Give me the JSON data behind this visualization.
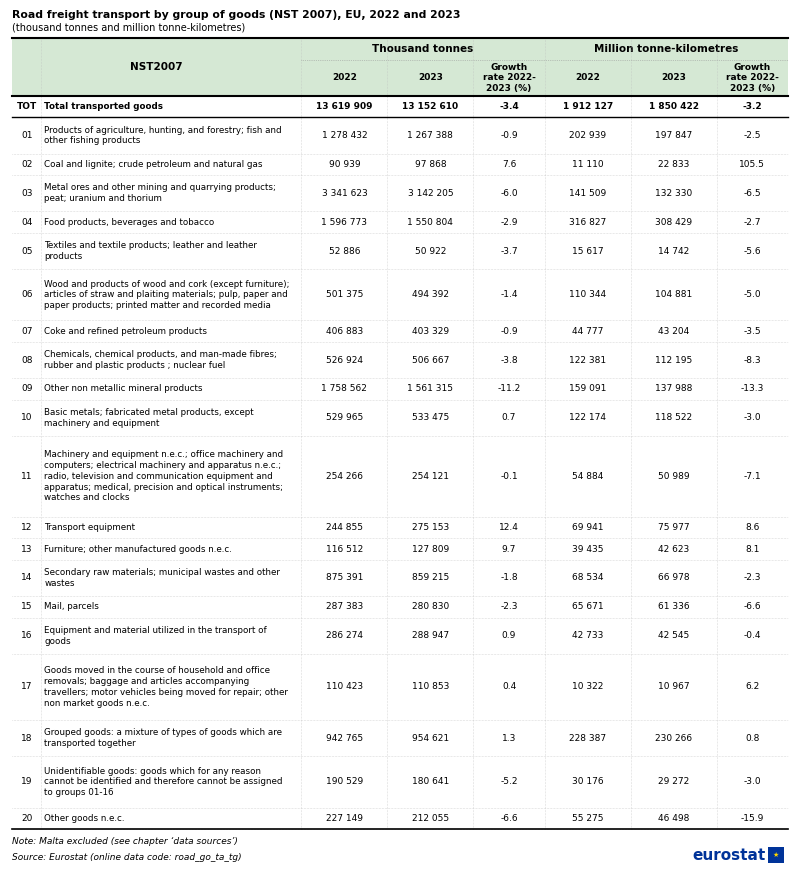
{
  "title": "Road freight transport by group of goods (NST 2007), EU, 2022 and 2023",
  "subtitle": "(thousand tonnes and million tonne-kilometres)",
  "col_header_1": "Thousand tonnes",
  "col_header_2": "Million tonne-kilometres",
  "nst_col": "NST2007",
  "note": "Note: Malta excluded (see chapter ‘data sources’)",
  "source": "Source: Eurostat (online data code: road_go_ta_tg)",
  "header_bg": "#d5e8d4",
  "rows": [
    {
      "code": "TOT",
      "label": "Total transported goods",
      "bold": true,
      "tt_2022": "13 619 909",
      "tt_2023": "13 152 610",
      "tt_growth": "-3.4",
      "mt_2022": "1 912 127",
      "mt_2023": "1 850 422",
      "mt_growth": "-3.2"
    },
    {
      "code": "01",
      "label": "Products of agriculture, hunting, and forestry; fish and\nother fishing products",
      "bold": false,
      "tt_2022": "1 278 432",
      "tt_2023": "1 267 388",
      "tt_growth": "-0.9",
      "mt_2022": "202 939",
      "mt_2023": "197 847",
      "mt_growth": "-2.5"
    },
    {
      "code": "02",
      "label": "Coal and lignite; crude petroleum and natural gas",
      "bold": false,
      "tt_2022": "90 939",
      "tt_2023": "97 868",
      "tt_growth": "7.6",
      "mt_2022": "11 110",
      "mt_2023": "22 833",
      "mt_growth": "105.5"
    },
    {
      "code": "03",
      "label": "Metal ores and other mining and quarrying products;\npeat; uranium and thorium",
      "bold": false,
      "tt_2022": "3 341 623",
      "tt_2023": "3 142 205",
      "tt_growth": "-6.0",
      "mt_2022": "141 509",
      "mt_2023": "132 330",
      "mt_growth": "-6.5"
    },
    {
      "code": "04",
      "label": "Food products, beverages and tobacco",
      "bold": false,
      "tt_2022": "1 596 773",
      "tt_2023": "1 550 804",
      "tt_growth": "-2.9",
      "mt_2022": "316 827",
      "mt_2023": "308 429",
      "mt_growth": "-2.7"
    },
    {
      "code": "05",
      "label": "Textiles and textile products; leather and leather\nproducts",
      "bold": false,
      "tt_2022": "52 886",
      "tt_2023": "50 922",
      "tt_growth": "-3.7",
      "mt_2022": "15 617",
      "mt_2023": "14 742",
      "mt_growth": "-5.6"
    },
    {
      "code": "06",
      "label": "Wood and products of wood and cork (except furniture);\narticles of straw and plaiting materials; pulp, paper and\npaper products; printed matter and recorded media",
      "bold": false,
      "tt_2022": "501 375",
      "tt_2023": "494 392",
      "tt_growth": "-1.4",
      "mt_2022": "110 344",
      "mt_2023": "104 881",
      "mt_growth": "-5.0"
    },
    {
      "code": "07",
      "label": "Coke and refined petroleum products",
      "bold": false,
      "tt_2022": "406 883",
      "tt_2023": "403 329",
      "tt_growth": "-0.9",
      "mt_2022": "44 777",
      "mt_2023": "43 204",
      "mt_growth": "-3.5"
    },
    {
      "code": "08",
      "label": "Chemicals, chemical products, and man-made fibres;\nrubber and plastic products ; nuclear fuel",
      "bold": false,
      "tt_2022": "526 924",
      "tt_2023": "506 667",
      "tt_growth": "-3.8",
      "mt_2022": "122 381",
      "mt_2023": "112 195",
      "mt_growth": "-8.3"
    },
    {
      "code": "09",
      "label": "Other non metallic mineral products",
      "bold": false,
      "tt_2022": "1 758 562",
      "tt_2023": "1 561 315",
      "tt_growth": "-11.2",
      "mt_2022": "159 091",
      "mt_2023": "137 988",
      "mt_growth": "-13.3"
    },
    {
      "code": "10",
      "label": "Basic metals; fabricated metal products, except\nmachinery and equipment",
      "bold": false,
      "tt_2022": "529 965",
      "tt_2023": "533 475",
      "tt_growth": "0.7",
      "mt_2022": "122 174",
      "mt_2023": "118 522",
      "mt_growth": "-3.0"
    },
    {
      "code": "11",
      "label": "Machinery and equipment n.e.c.; office machinery and\ncomputers; electrical machinery and apparatus n.e.c.;\nradio, television and communication equipment and\napparatus; medical, precision and optical instruments;\nwatches and clocks",
      "bold": false,
      "tt_2022": "254 266",
      "tt_2023": "254 121",
      "tt_growth": "-0.1",
      "mt_2022": "54 884",
      "mt_2023": "50 989",
      "mt_growth": "-7.1"
    },
    {
      "code": "12",
      "label": "Transport equipment",
      "bold": false,
      "tt_2022": "244 855",
      "tt_2023": "275 153",
      "tt_growth": "12.4",
      "mt_2022": "69 941",
      "mt_2023": "75 977",
      "mt_growth": "8.6"
    },
    {
      "code": "13",
      "label": "Furniture; other manufactured goods n.e.c.",
      "bold": false,
      "tt_2022": "116 512",
      "tt_2023": "127 809",
      "tt_growth": "9.7",
      "mt_2022": "39 435",
      "mt_2023": "42 623",
      "mt_growth": "8.1"
    },
    {
      "code": "14",
      "label": "Secondary raw materials; municipal wastes and other\nwastes",
      "bold": false,
      "tt_2022": "875 391",
      "tt_2023": "859 215",
      "tt_growth": "-1.8",
      "mt_2022": "68 534",
      "mt_2023": "66 978",
      "mt_growth": "-2.3"
    },
    {
      "code": "15",
      "label": "Mail, parcels",
      "bold": false,
      "tt_2022": "287 383",
      "tt_2023": "280 830",
      "tt_growth": "-2.3",
      "mt_2022": "65 671",
      "mt_2023": "61 336",
      "mt_growth": "-6.6"
    },
    {
      "code": "16",
      "label": "Equipment and material utilized in the transport of\ngoods",
      "bold": false,
      "tt_2022": "286 274",
      "tt_2023": "288 947",
      "tt_growth": "0.9",
      "mt_2022": "42 733",
      "mt_2023": "42 545",
      "mt_growth": "-0.4"
    },
    {
      "code": "17",
      "label": "Goods moved in the course of household and office\nremovals; baggage and articles accompanying\ntravellers; motor vehicles being moved for repair; other\nnon market goods n.e.c.",
      "bold": false,
      "tt_2022": "110 423",
      "tt_2023": "110 853",
      "tt_growth": "0.4",
      "mt_2022": "10 322",
      "mt_2023": "10 967",
      "mt_growth": "6.2"
    },
    {
      "code": "18",
      "label": "Grouped goods: a mixture of types of goods which are\ntransported together",
      "bold": false,
      "tt_2022": "942 765",
      "tt_2023": "954 621",
      "tt_growth": "1.3",
      "mt_2022": "228 387",
      "mt_2023": "230 266",
      "mt_growth": "0.8"
    },
    {
      "code": "19",
      "label": "Unidentifiable goods: goods which for any reason\ncannot be identified and therefore cannot be assigned\nto groups 01-16",
      "bold": false,
      "tt_2022": "190 529",
      "tt_2023": "180 641",
      "tt_growth": "-5.2",
      "mt_2022": "30 176",
      "mt_2023": "29 272",
      "mt_growth": "-3.0"
    },
    {
      "code": "20",
      "label": "Other goods n.e.c.",
      "bold": false,
      "tt_2022": "227 149",
      "tt_2023": "212 055",
      "tt_growth": "-6.6",
      "mt_2022": "55 275",
      "mt_2023": "46 498",
      "mt_growth": "-15.9"
    }
  ]
}
